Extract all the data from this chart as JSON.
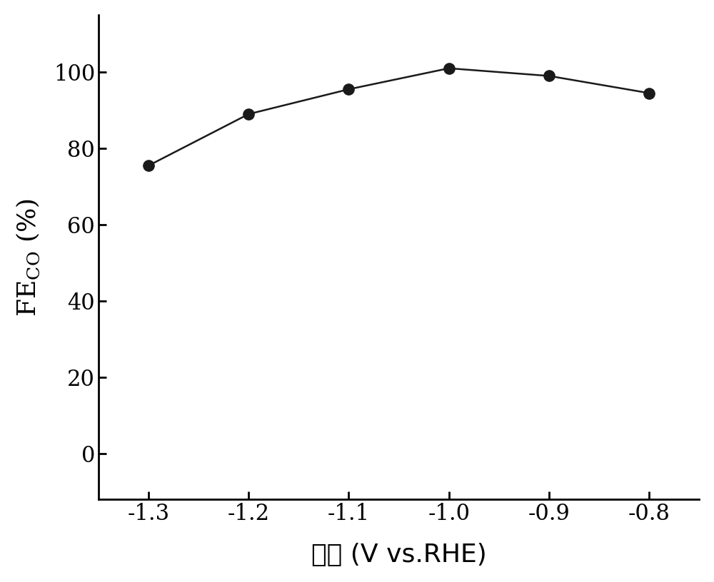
{
  "x": [
    -1.3,
    -1.2,
    -1.1,
    -1.0,
    -0.9,
    -0.8
  ],
  "y": [
    75.5,
    89.0,
    95.5,
    101.0,
    99.0,
    94.5
  ],
  "xlabel": "电位 (V vs.RHE)",
  "xlim": [
    -1.35,
    -0.75
  ],
  "ylim": [
    -12,
    115
  ],
  "xticks": [
    -1.3,
    -1.2,
    -1.1,
    -1.0,
    -0.9,
    -0.8
  ],
  "yticks": [
    0,
    20,
    40,
    60,
    80,
    100
  ],
  "line_color": "#1a1a1a",
  "marker_color": "#1a1a1a",
  "marker_size": 11,
  "line_width": 1.8,
  "tick_fontsize": 22,
  "label_fontsize": 26,
  "background_color": "#ffffff",
  "figure_bg": "#ffffff"
}
